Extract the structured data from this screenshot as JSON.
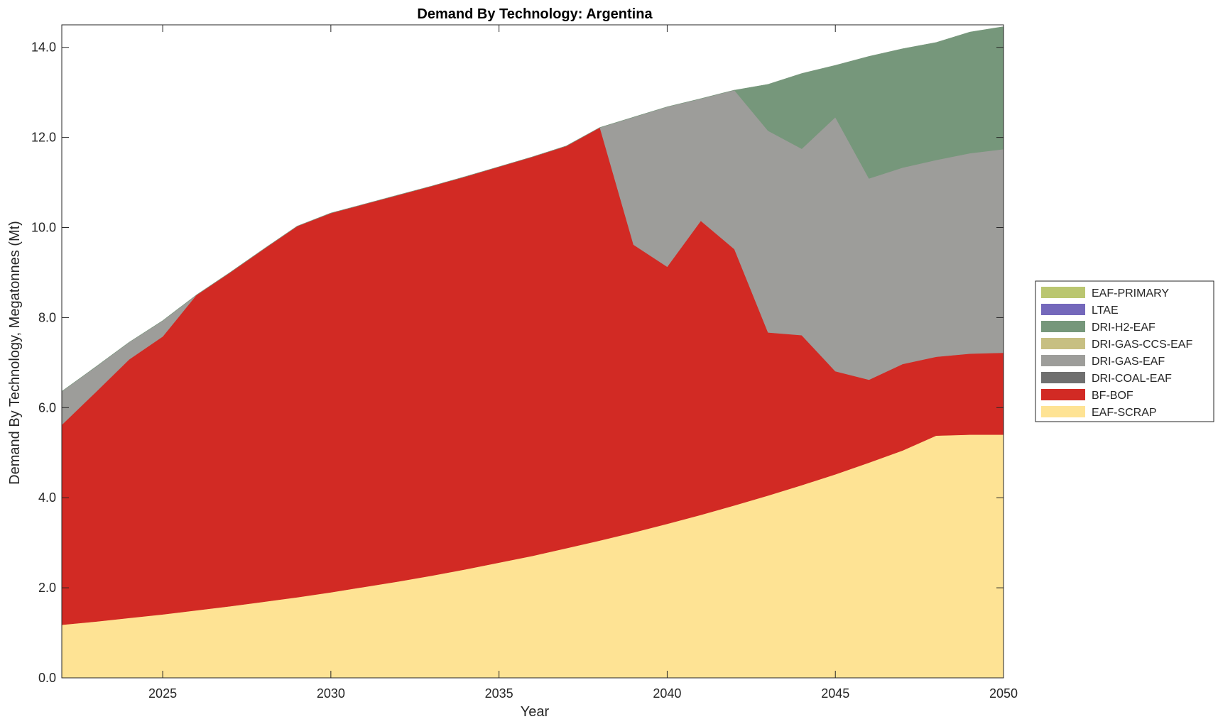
{
  "chart_data": {
    "type": "area",
    "stacked": true,
    "title": "Demand By Technology: Argentina",
    "xlabel": "Year",
    "ylabel": "Demand By Technology, Megatonnes (Mt)",
    "xlim": [
      2022,
      2050
    ],
    "ylim": [
      0,
      14.5
    ],
    "xticks": [
      2025,
      2030,
      2035,
      2040,
      2045,
      2050
    ],
    "yticks": [
      0,
      2,
      4,
      6,
      8,
      10,
      12,
      14
    ],
    "ytick_labels": [
      "0.0",
      "2.0",
      "4.0",
      "6.0",
      "8.0",
      "10.0",
      "12.0",
      "14.0"
    ],
    "grid": false,
    "legend_position": "right",
    "x": [
      2022,
      2023,
      2024,
      2025,
      2026,
      2027,
      2028,
      2029,
      2030,
      2031,
      2032,
      2033,
      2034,
      2035,
      2036,
      2037,
      2038,
      2039,
      2040,
      2041,
      2042,
      2043,
      2044,
      2045,
      2046,
      2047,
      2048,
      2049,
      2050
    ],
    "series": [
      {
        "name": "EAF-SCRAP",
        "color": "#FEE394",
        "values": [
          1.18,
          1.25,
          1.33,
          1.41,
          1.5,
          1.59,
          1.69,
          1.79,
          1.9,
          2.02,
          2.14,
          2.27,
          2.41,
          2.56,
          2.71,
          2.88,
          3.05,
          3.23,
          3.42,
          3.62,
          3.83,
          4.05,
          4.28,
          4.52,
          4.78,
          5.05,
          5.38,
          5.4,
          5.4
        ]
      },
      {
        "name": "BF-BOF",
        "color": "#D22A24",
        "values": [
          4.44,
          5.09,
          5.74,
          6.17,
          7.0,
          7.41,
          7.83,
          8.24,
          8.42,
          8.5,
          8.58,
          8.65,
          8.72,
          8.79,
          8.86,
          8.93,
          9.17,
          6.39,
          5.71,
          6.53,
          5.69,
          3.62,
          3.33,
          2.29,
          1.84,
          1.92,
          1.75,
          1.8,
          1.82
        ]
      },
      {
        "name": "DRI-COAL-EAF",
        "color": "#6F6F6F",
        "values": [
          0,
          0,
          0,
          0,
          0,
          0,
          0,
          0,
          0,
          0,
          0,
          0,
          0,
          0,
          0,
          0,
          0,
          0,
          0,
          0,
          0,
          0,
          0,
          0,
          0,
          0,
          0,
          0,
          0
        ]
      },
      {
        "name": "DRI-GAS-EAF",
        "color": "#9D9D9A",
        "values": [
          0.74,
          0.56,
          0.38,
          0.35,
          0.0,
          0.0,
          0.0,
          0.0,
          0.0,
          0.0,
          0.0,
          0.0,
          0.0,
          0.0,
          0.0,
          0.0,
          0.0,
          2.83,
          3.55,
          2.71,
          3.53,
          4.48,
          4.14,
          5.64,
          4.47,
          4.36,
          4.37,
          4.45,
          4.52
        ]
      },
      {
        "name": "DRI-GAS-CCS-EAF",
        "color": "#C7BF82",
        "values": [
          0,
          0,
          0,
          0,
          0,
          0,
          0,
          0,
          0,
          0,
          0,
          0,
          0,
          0,
          0,
          0,
          0,
          0,
          0,
          0,
          0,
          0,
          0,
          0,
          0,
          0,
          0,
          0,
          0
        ]
      },
      {
        "name": "DRI-H2-EAF",
        "color": "#76977B",
        "values": [
          0,
          0,
          0,
          0,
          0,
          0,
          0,
          0,
          0,
          0,
          0,
          0,
          0,
          0,
          0,
          0,
          0,
          0,
          0,
          0,
          0,
          1.03,
          1.67,
          1.15,
          2.71,
          2.64,
          2.61,
          2.69,
          2.72
        ]
      },
      {
        "name": "LTAE",
        "color": "#7468BB",
        "values": [
          0,
          0,
          0,
          0,
          0,
          0,
          0,
          0,
          0,
          0,
          0,
          0,
          0,
          0,
          0,
          0,
          0,
          0,
          0,
          0,
          0,
          0,
          0,
          0,
          0,
          0,
          0,
          0,
          0
        ]
      },
      {
        "name": "EAF-PRIMARY",
        "color": "#BAC670",
        "values": [
          0,
          0,
          0,
          0,
          0,
          0,
          0,
          0,
          0,
          0,
          0,
          0,
          0,
          0,
          0,
          0,
          0,
          0,
          0,
          0,
          0,
          0,
          0,
          0,
          0,
          0,
          0,
          0,
          0
        ]
      }
    ],
    "legend_order": [
      "EAF-PRIMARY",
      "LTAE",
      "DRI-H2-EAF",
      "DRI-GAS-CCS-EAF",
      "DRI-GAS-EAF",
      "DRI-COAL-EAF",
      "BF-BOF",
      "EAF-SCRAP"
    ]
  }
}
